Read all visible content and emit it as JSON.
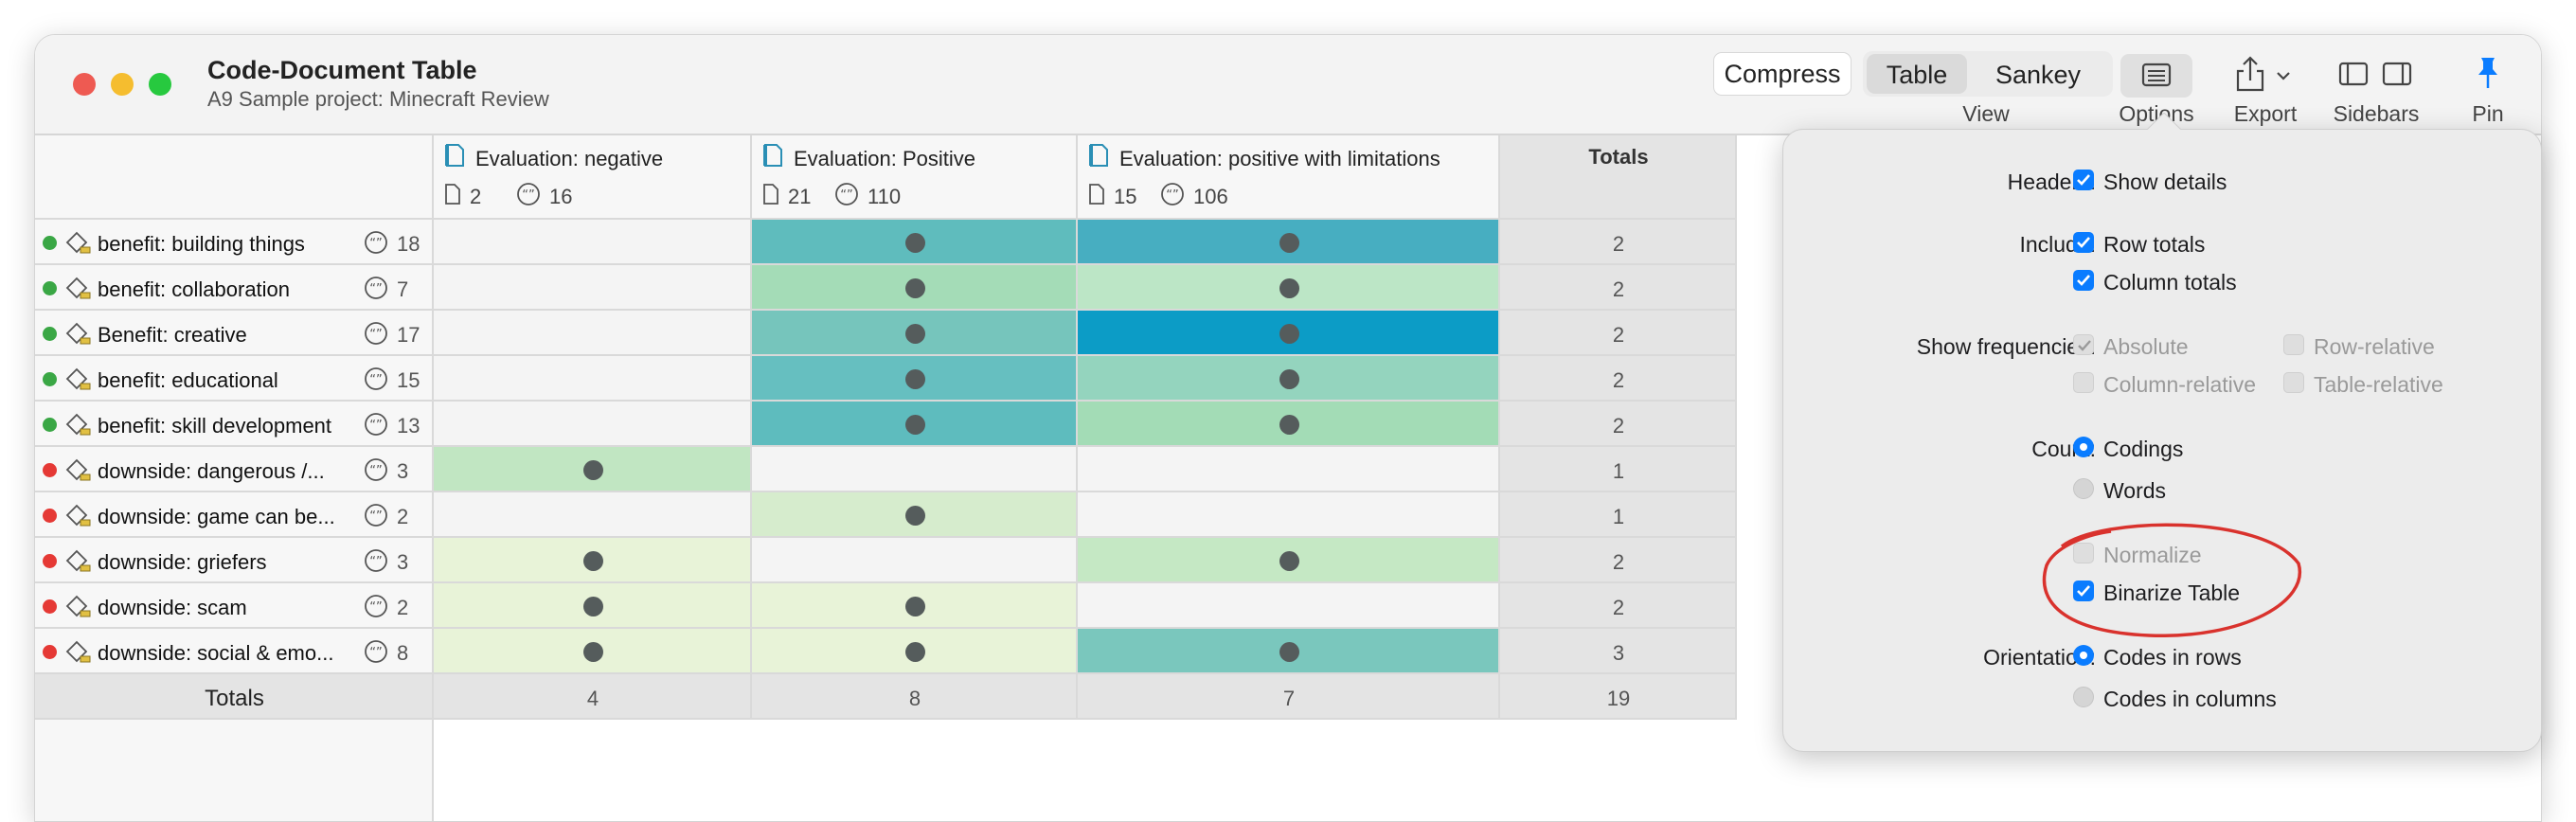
{
  "window": {
    "title": "Code-Document Table",
    "subtitle": "A9 Sample project: Minecraft Review"
  },
  "toolbar": {
    "compress": "Compress",
    "view_table": "Table",
    "view_sankey": "Sankey",
    "view_label": "View",
    "options_label": "Options",
    "export_label": "Export",
    "sidebars_label": "Sidebars",
    "pin_label": "Pin",
    "selected_view": "Table"
  },
  "table": {
    "columns": [
      {
        "title": "Evaluation: negative",
        "docs": "2",
        "quotes": "16"
      },
      {
        "title": "Evaluation: Positive",
        "docs": "21",
        "quotes": "110"
      },
      {
        "title": "Evaluation: positive with limitations",
        "docs": "15",
        "quotes": "106"
      }
    ],
    "totals_header": "Totals",
    "rows": [
      {
        "label": "benefit: building things",
        "count": "18",
        "status": "green",
        "cells": [
          false,
          true,
          true
        ],
        "total": "2"
      },
      {
        "label": "benefit: collaboration",
        "count": "7",
        "status": "green",
        "cells": [
          false,
          true,
          true
        ],
        "total": "2"
      },
      {
        "label": "Benefit: creative",
        "count": "17",
        "status": "green",
        "cells": [
          false,
          true,
          true
        ],
        "total": "2"
      },
      {
        "label": "benefit: educational",
        "count": "15",
        "status": "green",
        "cells": [
          false,
          true,
          true
        ],
        "total": "2"
      },
      {
        "label": "benefit: skill development",
        "count": "13",
        "status": "green",
        "cells": [
          false,
          true,
          true
        ],
        "total": "2"
      },
      {
        "label": "downside: dangerous /...",
        "count": "3",
        "status": "red",
        "cells": [
          true,
          false,
          false
        ],
        "total": "1"
      },
      {
        "label": "downside: game can be...",
        "count": "2",
        "status": "red",
        "cells": [
          false,
          true,
          false
        ],
        "total": "1"
      },
      {
        "label": "downside: griefers",
        "count": "3",
        "status": "red",
        "cells": [
          true,
          false,
          true
        ],
        "total": "2"
      },
      {
        "label": "downside: scam",
        "count": "2",
        "status": "red",
        "cells": [
          true,
          true,
          false
        ],
        "total": "2"
      },
      {
        "label": "downside: social & emo...",
        "count": "8",
        "status": "red",
        "cells": [
          true,
          true,
          true
        ],
        "total": "3"
      }
    ],
    "totals_row": {
      "label": "Totals",
      "values": [
        "4",
        "8",
        "7"
      ],
      "grand": "19"
    }
  },
  "options": {
    "headers_label": "Headers:",
    "show_details": "Show details",
    "include_label": "Include:",
    "row_totals": "Row totals",
    "column_totals": "Column totals",
    "show_freq_label": "Show frequencies:",
    "absolute": "Absolute",
    "row_relative": "Row-relative",
    "column_relative": "Column-relative",
    "table_relative": "Table-relative",
    "count_label": "Count:",
    "codings": "Codings",
    "words": "Words",
    "normalize": "Normalize",
    "binarize": "Binarize Table",
    "orientation_label": "Orientation:",
    "codes_in_rows": "Codes in rows",
    "codes_in_columns": "Codes in columns"
  },
  "colors": {
    "traffic_red": "#ee5a52",
    "traffic_yellow": "#f5bd2f",
    "traffic_green": "#27c93f",
    "status_green": "#3aa745",
    "status_red": "#e53935",
    "accent_blue": "#0a7cff",
    "annotation_red": "#d9322d"
  }
}
